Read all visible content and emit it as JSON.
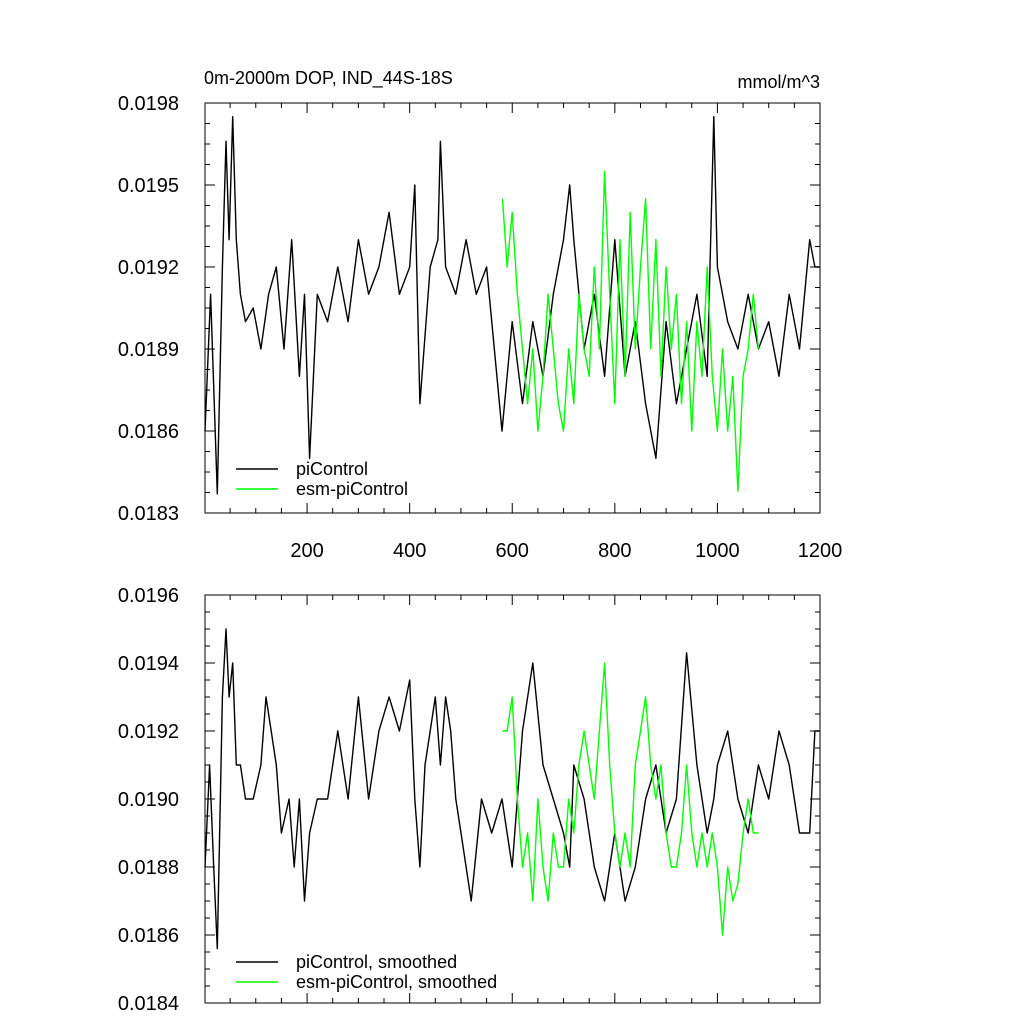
{
  "chart_data": [
    {
      "type": "line",
      "title_left": "0m-2000m DOP, IND_44S-18S",
      "title_right": "mmol/m^3",
      "xlabel": "",
      "ylabel": "",
      "xlim": [
        1,
        1200
      ],
      "ylim": [
        0.0183,
        0.0198
      ],
      "x_ticks": [
        200,
        400,
        600,
        800,
        1000,
        1200
      ],
      "x_tick_labels": [
        "200",
        "400",
        "600",
        "800",
        "1000",
        "1200"
      ],
      "y_ticks": [
        0.0183,
        0.0186,
        0.0189,
        0.0192,
        0.0195,
        0.0198
      ],
      "y_tick_labels": [
        "0.0183",
        "0.0186",
        "0.0189",
        "0.0192",
        "0.0195",
        "0.0198"
      ],
      "grid": false,
      "legend_position": "bottom-left",
      "series": [
        {
          "name": "piControl",
          "color": "#000000",
          "x": [
            1,
            12,
            25,
            35,
            42,
            48,
            55,
            62,
            70,
            80,
            95,
            110,
            125,
            140,
            155,
            170,
            185,
            195,
            205,
            220,
            240,
            260,
            280,
            300,
            320,
            340,
            360,
            380,
            400,
            410,
            420,
            440,
            455,
            460,
            470,
            490,
            510,
            530,
            550,
            570,
            580,
            600,
            620,
            640,
            660,
            680,
            700,
            712,
            720,
            740,
            760,
            780,
            800,
            820,
            840,
            860,
            880,
            900,
            920,
            940,
            960,
            980,
            993,
            1000,
            1020,
            1040,
            1060,
            1080,
            1100,
            1120,
            1140,
            1160,
            1180,
            1190,
            1200
          ],
          "y": [
            0.0186,
            0.0191,
            0.01837,
            0.0192,
            0.01966,
            0.0193,
            0.01975,
            0.0193,
            0.0191,
            0.019,
            0.01905,
            0.0189,
            0.0191,
            0.0192,
            0.0189,
            0.0193,
            0.0188,
            0.0191,
            0.0185,
            0.0191,
            0.019,
            0.0192,
            0.019,
            0.0193,
            0.0191,
            0.0192,
            0.0194,
            0.0191,
            0.0192,
            0.0195,
            0.0187,
            0.0192,
            0.0193,
            0.01966,
            0.0192,
            0.0191,
            0.0193,
            0.0191,
            0.0192,
            0.0188,
            0.0186,
            0.019,
            0.0187,
            0.019,
            0.0188,
            0.0191,
            0.0193,
            0.0195,
            0.0193,
            0.0189,
            0.0191,
            0.0188,
            0.0193,
            0.0188,
            0.019,
            0.0187,
            0.0185,
            0.019,
            0.0187,
            0.0189,
            0.0191,
            0.0188,
            0.01975,
            0.0192,
            0.019,
            0.0189,
            0.0191,
            0.0189,
            0.019,
            0.0188,
            0.0191,
            0.0189,
            0.0193,
            0.0192,
            0.0192
          ]
        },
        {
          "name": "esm-piControl",
          "color": "#00ff00",
          "x": [
            581,
            590,
            600,
            610,
            620,
            630,
            640,
            650,
            660,
            670,
            680,
            690,
            700,
            710,
            720,
            730,
            740,
            750,
            760,
            770,
            780,
            790,
            800,
            810,
            820,
            830,
            840,
            850,
            860,
            870,
            880,
            890,
            900,
            910,
            920,
            930,
            940,
            950,
            960,
            970,
            980,
            990,
            1000,
            1010,
            1020,
            1030,
            1040,
            1050,
            1060,
            1070,
            1080
          ],
          "y": [
            0.01945,
            0.0192,
            0.0194,
            0.0191,
            0.0189,
            0.0187,
            0.0189,
            0.0186,
            0.0188,
            0.0191,
            0.0189,
            0.0187,
            0.0186,
            0.0189,
            0.0187,
            0.0191,
            0.0189,
            0.0188,
            0.0192,
            0.0189,
            0.01955,
            0.0191,
            0.0187,
            0.0193,
            0.0188,
            0.0194,
            0.0189,
            0.0192,
            0.01945,
            0.0189,
            0.0193,
            0.0188,
            0.0192,
            0.0189,
            0.0191,
            0.0187,
            0.019,
            0.0186,
            0.019,
            0.0188,
            0.0192,
            0.0188,
            0.0186,
            0.0189,
            0.0186,
            0.0188,
            0.01838,
            0.0188,
            0.0189,
            0.0191,
            0.0189
          ]
        }
      ]
    },
    {
      "type": "line",
      "title_left": "",
      "title_right": "",
      "xlabel": "",
      "ylabel": "",
      "xlim": [
        1,
        1200
      ],
      "ylim": [
        0.0184,
        0.0196
      ],
      "x_ticks": [
        200,
        400,
        600,
        800,
        1000,
        1200
      ],
      "x_tick_labels": [],
      "y_ticks": [
        0.0184,
        0.0186,
        0.0188,
        0.019,
        0.0192,
        0.0194,
        0.0196
      ],
      "y_tick_labels": [
        "0.0184",
        "0.0186",
        "0.0188",
        "0.0190",
        "0.0192",
        "0.0194",
        "0.0196"
      ],
      "grid": false,
      "legend_position": "bottom-left",
      "series": [
        {
          "name": "piControl, smoothed",
          "color": "#000000",
          "x": [
            1,
            10,
            18,
            25,
            35,
            42,
            48,
            55,
            62,
            70,
            80,
            95,
            110,
            120,
            130,
            140,
            150,
            165,
            175,
            185,
            195,
            205,
            220,
            240,
            260,
            280,
            300,
            320,
            340,
            360,
            380,
            400,
            410,
            420,
            430,
            440,
            450,
            460,
            470,
            480,
            490,
            500,
            510,
            520,
            540,
            560,
            580,
            600,
            620,
            640,
            660,
            680,
            700,
            712,
            720,
            740,
            760,
            780,
            800,
            820,
            840,
            860,
            880,
            900,
            920,
            940,
            960,
            980,
            993,
            1000,
            1020,
            1040,
            1060,
            1080,
            1100,
            1120,
            1140,
            1160,
            1180,
            1190,
            1200
          ],
          "y": [
            0.0188,
            0.0191,
            0.0188,
            0.01856,
            0.0193,
            0.0195,
            0.0193,
            0.0194,
            0.0191,
            0.0191,
            0.019,
            0.019,
            0.0191,
            0.0193,
            0.0192,
            0.0191,
            0.0189,
            0.019,
            0.0188,
            0.019,
            0.0187,
            0.0189,
            0.019,
            0.019,
            0.0192,
            0.019,
            0.0193,
            0.019,
            0.0192,
            0.0193,
            0.0192,
            0.01935,
            0.019,
            0.0188,
            0.0191,
            0.0192,
            0.0193,
            0.0191,
            0.0193,
            0.0192,
            0.019,
            0.0189,
            0.0188,
            0.0187,
            0.019,
            0.0189,
            0.019,
            0.0188,
            0.0192,
            0.0194,
            0.0191,
            0.019,
            0.0189,
            0.0188,
            0.0191,
            0.019,
            0.0188,
            0.0187,
            0.0189,
            0.0187,
            0.0188,
            0.019,
            0.0191,
            0.0189,
            0.019,
            0.01943,
            0.0191,
            0.0189,
            0.019,
            0.0191,
            0.0192,
            0.019,
            0.0189,
            0.0191,
            0.019,
            0.0192,
            0.0191,
            0.0189,
            0.0189,
            0.0192,
            0.0192
          ]
        },
        {
          "name": "esm-piControl, smoothed",
          "color": "#00ff00",
          "x": [
            581,
            590,
            600,
            610,
            620,
            630,
            640,
            650,
            660,
            670,
            680,
            690,
            700,
            710,
            720,
            730,
            740,
            750,
            760,
            770,
            780,
            790,
            800,
            810,
            820,
            830,
            840,
            850,
            860,
            870,
            880,
            890,
            900,
            910,
            920,
            930,
            940,
            950,
            960,
            970,
            980,
            990,
            1000,
            1010,
            1020,
            1030,
            1040,
            1050,
            1060,
            1070,
            1080
          ],
          "y": [
            0.0192,
            0.0192,
            0.0193,
            0.019,
            0.0188,
            0.0189,
            0.0187,
            0.019,
            0.0188,
            0.0187,
            0.0189,
            0.0188,
            0.0188,
            0.019,
            0.0189,
            0.0191,
            0.0192,
            0.0191,
            0.019,
            0.0192,
            0.0194,
            0.0191,
            0.0189,
            0.0188,
            0.0189,
            0.0188,
            0.0191,
            0.0192,
            0.0193,
            0.0191,
            0.019,
            0.0191,
            0.0189,
            0.0188,
            0.0188,
            0.0189,
            0.0191,
            0.0189,
            0.0188,
            0.0189,
            0.0188,
            0.0189,
            0.0188,
            0.0186,
            0.0188,
            0.0187,
            0.01875,
            0.0189,
            0.019,
            0.0189,
            0.0189
          ]
        }
      ]
    }
  ]
}
